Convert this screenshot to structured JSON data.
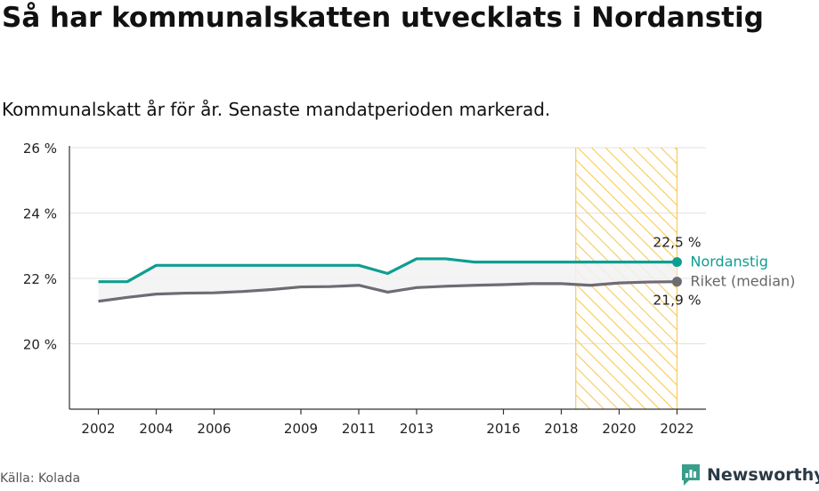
{
  "title": "Så har kommunalskatten utvecklats i Nordanstig",
  "subtitle": "Kommunalskatt år för år. Senaste mandatperioden markerad.",
  "source": "Källa: Kolada",
  "brand": {
    "name": "Newsworthy",
    "icon": "newsworthy-logo-icon"
  },
  "colors": {
    "primary": "#0e9e91",
    "secondary": "#6e6c73",
    "highlight": "#f7c95a"
  },
  "chart_data": {
    "type": "line",
    "x": [
      2002,
      2003,
      2004,
      2005,
      2006,
      2007,
      2008,
      2009,
      2010,
      2011,
      2012,
      2013,
      2014,
      2015,
      2016,
      2017,
      2018,
      2019,
      2020,
      2021,
      2022
    ],
    "xticks": [
      2002,
      2004,
      2006,
      2009,
      2011,
      2013,
      2016,
      2018,
      2020,
      2022
    ],
    "yticks": [
      20,
      22,
      24,
      26
    ],
    "ytick_labels": [
      "20 %",
      "22 %",
      "24 %",
      "26 %"
    ],
    "ylim": [
      18,
      26
    ],
    "xlim": [
      2001,
      2023
    ],
    "highlight_period": [
      2018.5,
      2022
    ],
    "series": [
      {
        "name": "Nordanstig",
        "color": "#0e9e91",
        "values": [
          21.9,
          21.9,
          22.4,
          22.4,
          22.4,
          22.4,
          22.4,
          22.4,
          22.4,
          22.4,
          22.15,
          22.6,
          22.6,
          22.5,
          22.5,
          22.5,
          22.5,
          22.5,
          22.5,
          22.5,
          22.5
        ],
        "end_label": "22,5 %"
      },
      {
        "name": "Riket (median)",
        "color": "#6e6c73",
        "values": [
          21.3,
          21.42,
          21.52,
          21.55,
          21.56,
          21.6,
          21.66,
          21.74,
          21.75,
          21.79,
          21.58,
          21.72,
          21.76,
          21.79,
          21.81,
          21.84,
          21.84,
          21.79,
          21.86,
          21.89,
          21.9
        ],
        "end_label": "21,9 %"
      }
    ]
  }
}
